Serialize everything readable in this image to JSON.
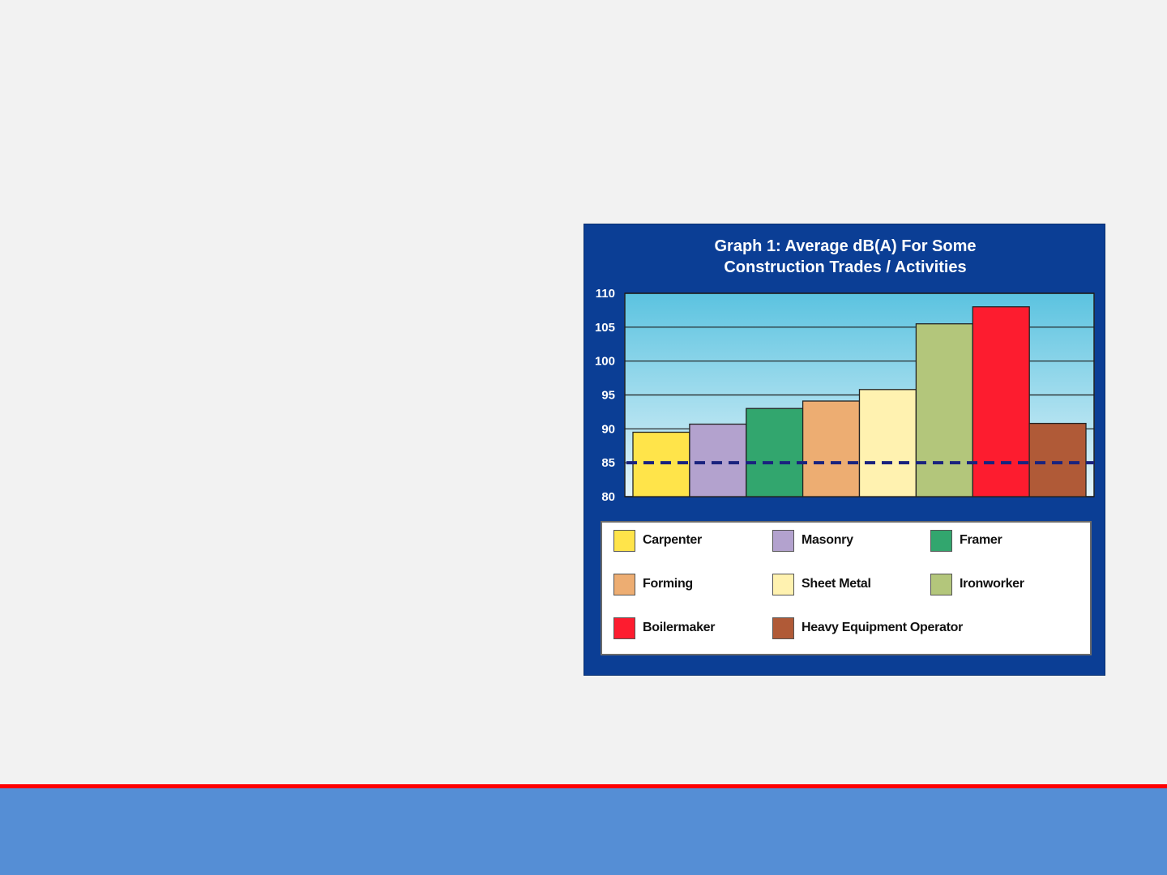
{
  "chart_data": {
    "type": "bar",
    "title_lines": [
      "Graph 1: Average dB(A) For Some",
      "Construction Trades / Activities"
    ],
    "xlabel": "",
    "ylabel": "",
    "ylim": [
      80,
      110
    ],
    "yticks": [
      "80",
      "85",
      "90",
      "95",
      "100",
      "105",
      "110"
    ],
    "grid": true,
    "legend_position": "bottom",
    "reference_line": {
      "value": 85,
      "style": "dashed",
      "color": "#1a237e"
    },
    "categories": [
      "Carpenter",
      "Masonry",
      "Framer",
      "Forming",
      "Sheet Metal",
      "Ironworker",
      "Boilermaker",
      "Heavy Equipment Operator"
    ],
    "values": [
      89.5,
      90.7,
      93,
      94.1,
      95.8,
      105.5,
      108,
      90.8
    ],
    "colors": [
      "#ffe44a",
      "#b3a2ce",
      "#32a66e",
      "#edad72",
      "#fff2b0",
      "#b3c67b",
      "#fd1c2f",
      "#b05a37"
    ]
  },
  "legend_items": [
    {
      "label": "Carpenter",
      "color": "#ffe44a"
    },
    {
      "label": "Masonry",
      "color": "#b3a2ce"
    },
    {
      "label": "Framer",
      "color": "#32a66e"
    },
    {
      "label": "Forming",
      "color": "#edad72"
    },
    {
      "label": "Sheet Metal",
      "color": "#fff2b0"
    },
    {
      "label": "Ironworker",
      "color": "#b3c67b"
    },
    {
      "label": "Boilermaker",
      "color": "#fd1c2f"
    },
    {
      "label": "Heavy Equipment Operator",
      "color": "#b05a37"
    }
  ],
  "colors": {
    "panel_background": "#0b3e95",
    "plot_gradient_top": "#5bc3e0",
    "plot_gradient_bottom": "#e4f4fa",
    "footer_bar": "#558ed5",
    "footer_accent": "#ff0000"
  }
}
